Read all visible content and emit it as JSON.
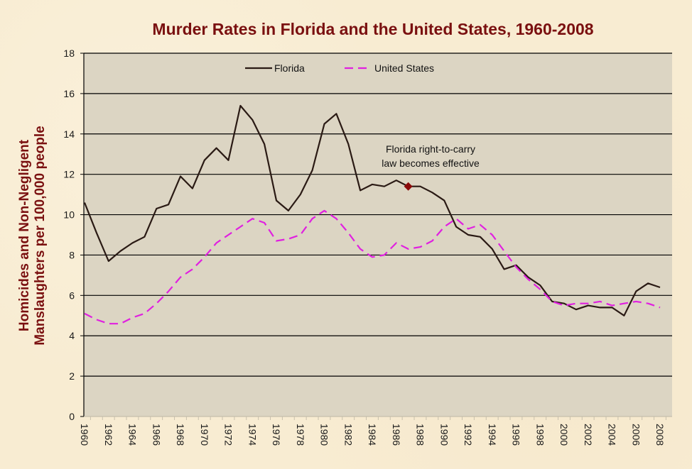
{
  "chart_data": {
    "type": "line",
    "title": "Murder Rates in Florida and the United States, 1960-2008",
    "xlabel": "",
    "ylabel_lines": [
      "Homicides and Non-Negligent",
      "Manslaughters per 100,000 people"
    ],
    "ylim": [
      0,
      18
    ],
    "yticks": [
      0,
      2,
      4,
      6,
      8,
      10,
      12,
      14,
      16,
      18
    ],
    "x": [
      1960,
      1961,
      1962,
      1963,
      1964,
      1965,
      1966,
      1967,
      1968,
      1969,
      1970,
      1971,
      1972,
      1973,
      1974,
      1975,
      1976,
      1977,
      1978,
      1979,
      1980,
      1981,
      1982,
      1983,
      1984,
      1985,
      1986,
      1987,
      1988,
      1989,
      1990,
      1991,
      1992,
      1993,
      1994,
      1995,
      1996,
      1997,
      1998,
      1999,
      2000,
      2001,
      2002,
      2003,
      2004,
      2005,
      2006,
      2007,
      2008
    ],
    "xtick_labels": [
      "1960",
      "1962",
      "1964",
      "1966",
      "1968",
      "1970",
      "1972",
      "1974",
      "1976",
      "1978",
      "1980",
      "1982",
      "1984",
      "1986",
      "1988",
      "1990",
      "1992",
      "1994",
      "1996",
      "1998",
      "2000",
      "2002",
      "2004",
      "2006",
      "2008"
    ],
    "grid": true,
    "legend_position": "top-center",
    "series": [
      {
        "name": "Florida",
        "color": "#2a1a14",
        "style": "solid",
        "values": [
          10.6,
          9.1,
          7.7,
          8.2,
          8.6,
          8.9,
          10.3,
          10.5,
          11.9,
          11.3,
          12.7,
          13.3,
          12.7,
          15.4,
          14.7,
          13.5,
          10.7,
          10.2,
          11.0,
          12.2,
          14.5,
          15.0,
          13.5,
          11.2,
          11.5,
          11.4,
          11.7,
          11.4,
          11.4,
          11.1,
          10.7,
          9.4,
          9.0,
          8.9,
          8.3,
          7.3,
          7.5,
          6.9,
          6.5,
          5.7,
          5.6,
          5.3,
          5.5,
          5.4,
          5.4,
          5.0,
          6.2,
          6.6,
          6.4
        ]
      },
      {
        "name": "United States",
        "color": "#e020e0",
        "style": "dashed",
        "values": [
          5.1,
          4.8,
          4.6,
          4.6,
          4.9,
          5.1,
          5.6,
          6.2,
          6.9,
          7.3,
          7.9,
          8.6,
          9.0,
          9.4,
          9.8,
          9.6,
          8.7,
          8.8,
          9.0,
          9.8,
          10.2,
          9.8,
          9.1,
          8.3,
          7.9,
          8.0,
          8.6,
          8.3,
          8.4,
          8.7,
          9.4,
          9.8,
          9.3,
          9.5,
          9.0,
          8.2,
          7.4,
          6.8,
          6.3,
          5.7,
          5.5,
          5.6,
          5.6,
          5.7,
          5.5,
          5.6,
          5.7,
          5.6,
          5.4
        ]
      }
    ],
    "annotations": [
      {
        "text_lines": [
          "Florida right-to-carry",
          "law becomes effective"
        ],
        "x": 1987,
        "y": 11.4,
        "marker": "diamond",
        "marker_color": "#8b0a0a"
      }
    ],
    "colors": {
      "plot_background": "#dcd5c3",
      "page_background": "#f8ecd2",
      "title": "#7a1010"
    }
  }
}
